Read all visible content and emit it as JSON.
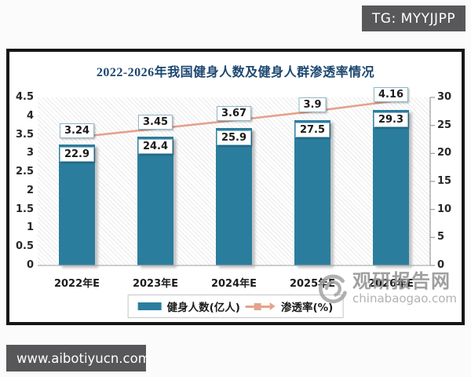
{
  "page": {
    "tg_badge": "TG: MYYJJPP",
    "bottom_banner": "www.aibotiyucn.com"
  },
  "watermark": {
    "site_name": "观研报告网",
    "site_url": "chinabaogao.com"
  },
  "chart_data": {
    "type": "bar+line",
    "title": "2022-2026年我国健身人数及健身人群渗透率情况",
    "categories": [
      "2022年E",
      "2023年E",
      "2024年E",
      "2025年E",
      "2026年E"
    ],
    "series": [
      {
        "name": "健身人数(亿人)",
        "type": "bar",
        "axis": "left",
        "values": [
          3.24,
          3.45,
          3.67,
          3.9,
          4.16
        ],
        "color": "#2b7d9e"
      },
      {
        "name": "渗透率(%)",
        "type": "line",
        "axis": "right",
        "values": [
          22.9,
          24.4,
          25.9,
          27.5,
          29.3
        ],
        "color": "#e5a28b"
      }
    ],
    "left_axis": {
      "min": 0,
      "max": 4.5,
      "ticks": [
        "4.5",
        "4",
        "3.5",
        "3",
        "2.5",
        "2",
        "1.5",
        "1",
        "0.5",
        "0"
      ]
    },
    "right_axis": {
      "min": 0,
      "max": 30,
      "ticks": [
        "30",
        "25",
        "20",
        "15",
        "10",
        "5",
        "0"
      ]
    },
    "grid": false,
    "plot_background": "diagonal-hatch",
    "legend_position": "bottom"
  }
}
